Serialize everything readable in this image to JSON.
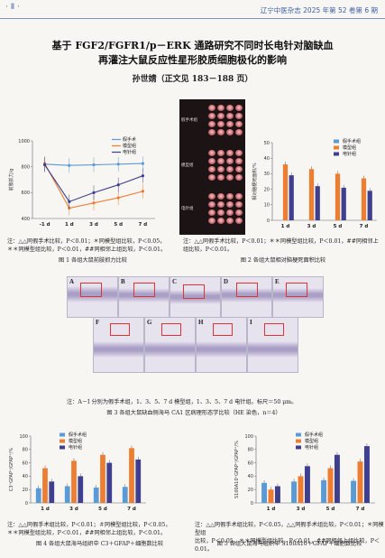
{
  "header": {
    "page_no": "· Ⅱ ·",
    "journal": "辽宁中医杂志 2025 年第 52 卷第 6 期"
  },
  "article": {
    "title_line1": "基于 FGF2/FGFR1/p－ERK 通路研究不同时长电针对脑缺血",
    "title_line2": "再灌注大鼠反应性星形胶质细胞极化的影响",
    "author": "孙世婧（正文见 183－188 页）"
  },
  "fig1": {
    "note1": "注：△△同假手术比较，P＜0.01；＊同模型组比较，P＜0.05，",
    "note2": "＊＊同模型组比较，P＜0.01，##同相邻上组比较，P＜0.01。",
    "caption": "图 1    各组大鼠前肢抓力比较"
  },
  "fig2": {
    "note1": "注：△△同假手术比较，P＜0.01；＊＊同模型组比较，P＜0.01，##同相邻上",
    "note2": "组比较，P＜0.01。",
    "caption": "图 2    各组大鼠相对脑梗死面积比较",
    "row_labels": [
      "假手术组",
      "模型组",
      "电针组"
    ]
  },
  "fig3": {
    "note": "注：A－I 分别为假手术组，1、3、5、7 d 模型组，1、3、5、7 d 电针组。标尺＝50 μm。",
    "caption": "图 3    各组大鼠缺血侧海马 CA1 区病理形态学比较（HE 染色，n＝4）",
    "panels": [
      "A",
      "B",
      "C",
      "D",
      "E",
      "F",
      "G",
      "H",
      "I"
    ]
  },
  "fig4": {
    "note1": "注：△△同假手术组比较，P＜0.01；＃同模型组比较，P＜0.05，",
    "note2": "＊＊同模型组比较，P＜0.01，##同相邻上组比较，P＜0.01。",
    "caption": "图 4    各组大鼠海马组织中 C3＋GFAP＋细胞数比较"
  },
  "fig5": {
    "note1": "注：△△同假手术组比较，P＜0.05，△△同假手术组比较，P＜0.01；＊同模型组",
    "note2": "比较，P＜0.05，＊＊同模型组比较，P＜0.01，##同相邻上组比较，P＜0.01。",
    "caption": "图 5    各组大鼠海马组织中 S100A10＋GFAP＋细胞数比较"
  },
  "chart_data": [
    {
      "type": "line",
      "ylabel": "前肢抓力/g",
      "categories": [
        "-1 d",
        "1 d",
        "3 d",
        "5 d",
        "7 d"
      ],
      "ylim": [
        400,
        1000
      ],
      "yticks": [
        400,
        600,
        800,
        1000
      ],
      "legend_position": "top-right",
      "series": [
        {
          "name": "假手术",
          "color": "#5b9bd5",
          "values": [
            820,
            810,
            815,
            820,
            825
          ]
        },
        {
          "name": "模型组",
          "color": "#ed7d31",
          "values": [
            825,
            480,
            520,
            560,
            610
          ]
        },
        {
          "name": "电针组",
          "color": "#3f3f8f",
          "values": [
            815,
            530,
            600,
            660,
            730
          ]
        }
      ]
    },
    {
      "type": "bar",
      "ylabel": "相对脑梗死面积/%",
      "categories": [
        "1 d",
        "3 d",
        "5 d",
        "7 d"
      ],
      "ylim": [
        0,
        50
      ],
      "yticks": [
        0,
        10,
        20,
        30,
        40,
        50
      ],
      "legend_position": "top-right",
      "series": [
        {
          "name": "假手术组",
          "color": "#5b9bd5",
          "values": [
            0,
            0,
            0,
            0
          ]
        },
        {
          "name": "模型组",
          "color": "#ed7d31",
          "values": [
            36,
            33,
            30,
            27
          ]
        },
        {
          "name": "电针组",
          "color": "#3f3f8f",
          "values": [
            29,
            22,
            21,
            19
          ]
        }
      ]
    },
    {
      "type": "bar",
      "ylabel": "C3⁺GFAP⁺/GFAP⁺/%",
      "categories": [
        "1 d",
        "3 d",
        "5 d",
        "7 d"
      ],
      "ylim": [
        0,
        100
      ],
      "yticks": [
        0,
        20,
        40,
        60,
        80,
        100
      ],
      "legend_position": "top-left",
      "series": [
        {
          "name": "假手术组",
          "color": "#5b9bd5",
          "values": [
            22,
            25,
            23,
            24
          ]
        },
        {
          "name": "模型组",
          "color": "#ed7d31",
          "values": [
            52,
            63,
            72,
            82
          ]
        },
        {
          "name": "电针组",
          "color": "#3f3f8f",
          "values": [
            32,
            40,
            60,
            65
          ]
        }
      ]
    },
    {
      "type": "bar",
      "ylabel": "S100A10⁺GFAP⁺/GFAP⁺/%",
      "categories": [
        "1 d",
        "3 d",
        "5 d",
        "7 d"
      ],
      "ylim": [
        0,
        100
      ],
      "yticks": [
        0,
        20,
        40,
        60,
        80,
        100
      ],
      "legend_position": "top-center",
      "series": [
        {
          "name": "假手术组",
          "color": "#5b9bd5",
          "values": [
            30,
            32,
            34,
            33
          ]
        },
        {
          "name": "模型组",
          "color": "#ed7d31",
          "values": [
            20,
            40,
            52,
            62
          ]
        },
        {
          "name": "电针组",
          "color": "#3f3f8f",
          "values": [
            25,
            55,
            72,
            85
          ]
        }
      ]
    }
  ]
}
